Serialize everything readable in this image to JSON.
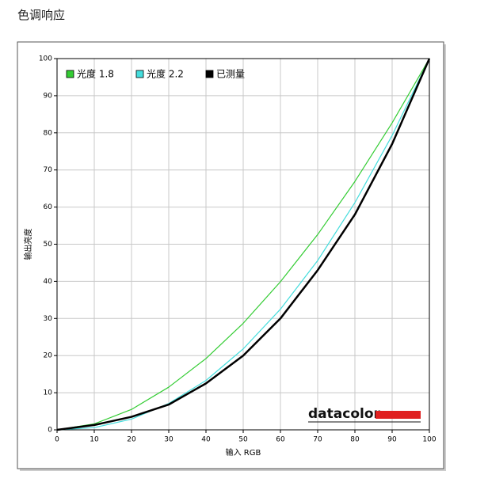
{
  "page_title": "色调响应",
  "chart_data": {
    "type": "line",
    "xlabel": "输入 RGB",
    "ylabel": "输出亮度",
    "logo": "datacolor",
    "x": [
      0,
      10,
      20,
      30,
      40,
      50,
      60,
      70,
      80,
      90,
      100
    ],
    "series": [
      {
        "name": "光度 1.8",
        "color": "#33cc33",
        "values": [
          0,
          1.6,
          5.5,
          11.5,
          19.2,
          28.7,
          39.9,
          52.6,
          66.9,
          82.7,
          100
        ]
      },
      {
        "name": "光度 2.2",
        "color": "#44dddd",
        "values": [
          0,
          0.6,
          2.9,
          7.1,
          13.3,
          21.8,
          32.5,
          45.6,
          61.2,
          79.3,
          100
        ]
      },
      {
        "name": "已测量",
        "color": "#000000",
        "values": [
          0,
          1.3,
          3.5,
          6.8,
          12.5,
          20,
          30,
          43,
          58,
          77,
          100
        ]
      }
    ],
    "xlim": [
      0,
      100
    ],
    "ylim": [
      0,
      100
    ],
    "xticks": [
      0,
      10,
      20,
      30,
      40,
      50,
      60,
      70,
      80,
      90,
      100
    ],
    "yticks": [
      0,
      10,
      20,
      30,
      40,
      50,
      60,
      70,
      80,
      90,
      100
    ],
    "grid": true,
    "legend": "top-left"
  }
}
